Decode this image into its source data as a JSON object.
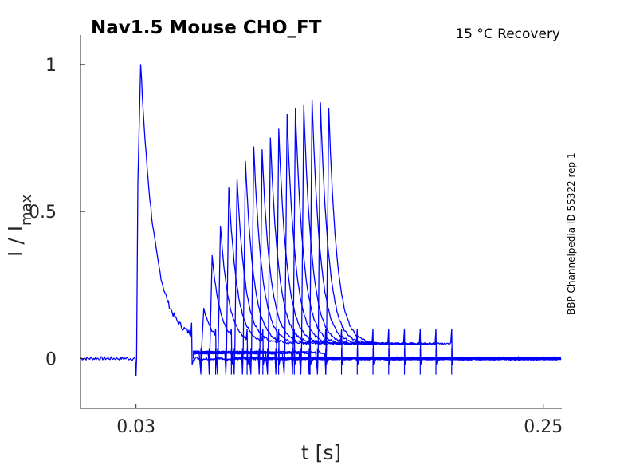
{
  "chart_data": {
    "type": "line",
    "title": "Nav1.5  Mouse  CHO_FT",
    "subtitle": "15 °C  Recovery",
    "side_note": "BBP Channelpedia ID 55322 rep 1",
    "xlabel": "t [s]",
    "ylabel_main": "I / I",
    "ylabel_sub": "max",
    "xlim": [
      0,
      0.26
    ],
    "ylim": [
      -0.17,
      1.1
    ],
    "x_ticks": [
      {
        "value": 0.03,
        "label": "0.03"
      },
      {
        "value": 0.25,
        "label": "0.25"
      }
    ],
    "y_ticks": [
      {
        "value": 0,
        "label": "0"
      },
      {
        "value": 0.5,
        "label": "0.5"
      },
      {
        "value": 1,
        "label": "1"
      }
    ],
    "color": "#0000ff",
    "conditioning_pulse": {
      "t_on": 0.03,
      "peak": 1.0,
      "t_off": 0.06
    },
    "recovery_pulses": [
      {
        "t_on": 0.065,
        "peak": 0.17,
        "duration": 0.008
      },
      {
        "t_on": 0.0695,
        "peak": 0.35,
        "duration": 0.012
      },
      {
        "t_on": 0.074,
        "peak": 0.45,
        "duration": 0.016
      },
      {
        "t_on": 0.0785,
        "peak": 0.58,
        "duration": 0.02
      },
      {
        "t_on": 0.083,
        "peak": 0.61,
        "duration": 0.024
      },
      {
        "t_on": 0.0875,
        "peak": 0.67,
        "duration": 0.028
      },
      {
        "t_on": 0.092,
        "peak": 0.72,
        "duration": 0.032
      },
      {
        "t_on": 0.0965,
        "peak": 0.71,
        "duration": 0.036
      },
      {
        "t_on": 0.101,
        "peak": 0.75,
        "duration": 0.04
      },
      {
        "t_on": 0.1055,
        "peak": 0.78,
        "duration": 0.044
      },
      {
        "t_on": 0.11,
        "peak": 0.83,
        "duration": 0.048
      },
      {
        "t_on": 0.1145,
        "peak": 0.85,
        "duration": 0.052
      },
      {
        "t_on": 0.119,
        "peak": 0.86,
        "duration": 0.056
      },
      {
        "t_on": 0.1235,
        "peak": 0.88,
        "duration": 0.06
      },
      {
        "t_on": 0.128,
        "peak": 0.87,
        "duration": 0.064
      },
      {
        "t_on": 0.1325,
        "peak": 0.85,
        "duration": 0.068
      }
    ]
  }
}
